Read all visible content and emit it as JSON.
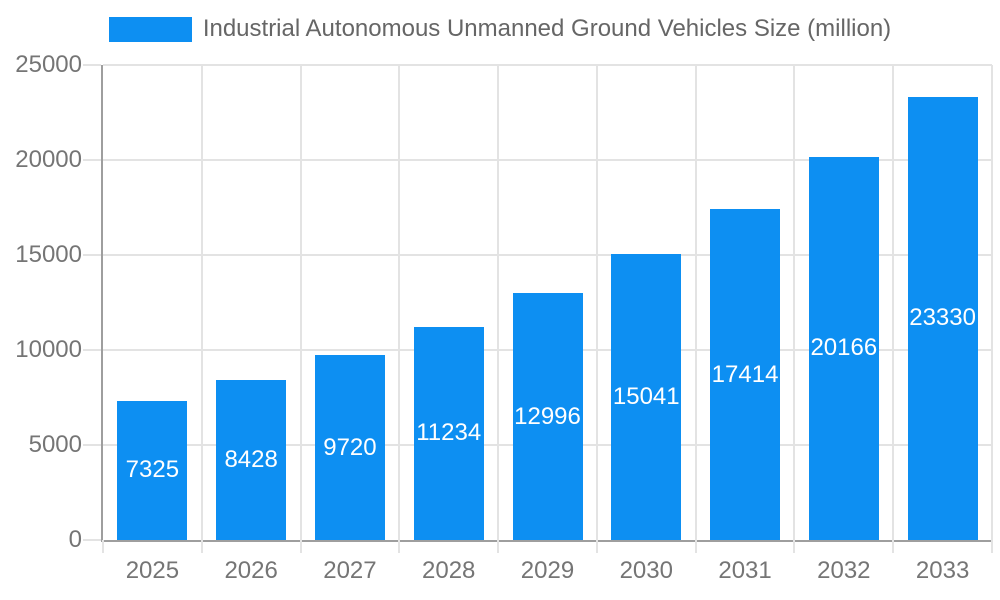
{
  "legend": {
    "label": "Industrial Autonomous Unmanned Ground Vehicles Size (million)"
  },
  "chart_data": {
    "type": "bar",
    "title": "Industrial Autonomous Unmanned Ground Vehicles Size (million)",
    "categories": [
      "2025",
      "2026",
      "2027",
      "2028",
      "2029",
      "2030",
      "2031",
      "2032",
      "2033"
    ],
    "values": [
      7325,
      8428,
      9720,
      11234,
      12996,
      15041,
      17414,
      20166,
      23330
    ],
    "xlabel": "",
    "ylabel": "",
    "ylim": [
      0,
      25000
    ],
    "yticks": [
      0,
      5000,
      10000,
      15000,
      20000,
      25000
    ],
    "grid": true,
    "legend_position": "top-center",
    "value_labels": "inside-center",
    "colors": {
      "bar": "#0d8ff2",
      "value_label": "#ffffff",
      "axis_line": "#9e9e9e",
      "gridline": "#e3e3e3",
      "tick_label": "#757575",
      "legend_text": "#666666",
      "background": "#ffffff"
    }
  }
}
